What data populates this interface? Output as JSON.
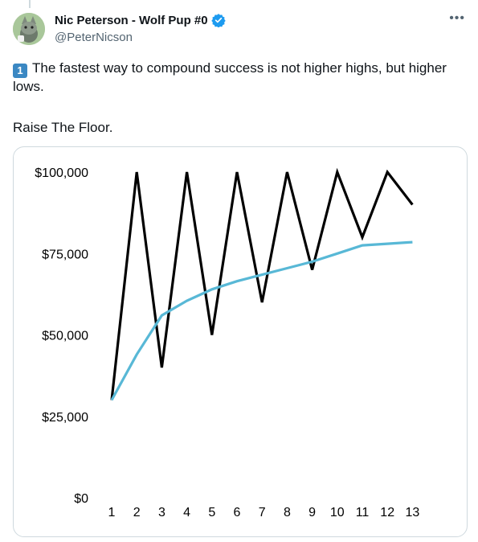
{
  "tweet": {
    "author_name": "Nic Peterson - Wolf Pup #0",
    "author_handle": "@PeterNicson",
    "verified": true,
    "more_icon": "more-horizontal-icon",
    "number_emoji": "1",
    "text_line1": "The fastest way to compound success is not higher highs, but higher",
    "text_line2": "lows.",
    "text_line3": "Raise The Floor."
  },
  "colors": {
    "verified_blue": "#1d9bf0",
    "series_black": "#000000",
    "series_blue": "#58b8d6",
    "text_primary": "#0f1419",
    "text_secondary": "#536471",
    "border": "#cfd9de"
  },
  "chart_data": {
    "type": "line",
    "title": "",
    "xlabel": "",
    "ylabel": "",
    "x": [
      1,
      2,
      3,
      4,
      5,
      6,
      7,
      8,
      9,
      10,
      11,
      12,
      13
    ],
    "ylim": [
      0,
      100000
    ],
    "y_ticks": [
      "$0",
      "$25,000",
      "$50,000",
      "$75,000",
      "$100,000"
    ],
    "y_tick_values": [
      0,
      25000,
      50000,
      75000,
      100000
    ],
    "grid": false,
    "legend": "none",
    "series": [
      {
        "color": "#000000",
        "values": [
          30000,
          100000,
          40000,
          100000,
          50000,
          100000,
          60000,
          100000,
          70000,
          100000,
          80000,
          100000,
          90000
        ]
      },
      {
        "color": "#58b8d6",
        "values": [
          30000,
          44000,
          56000,
          60500,
          64000,
          66500,
          68500,
          70500,
          72500,
          75000,
          77500,
          78000,
          78500
        ]
      }
    ]
  }
}
